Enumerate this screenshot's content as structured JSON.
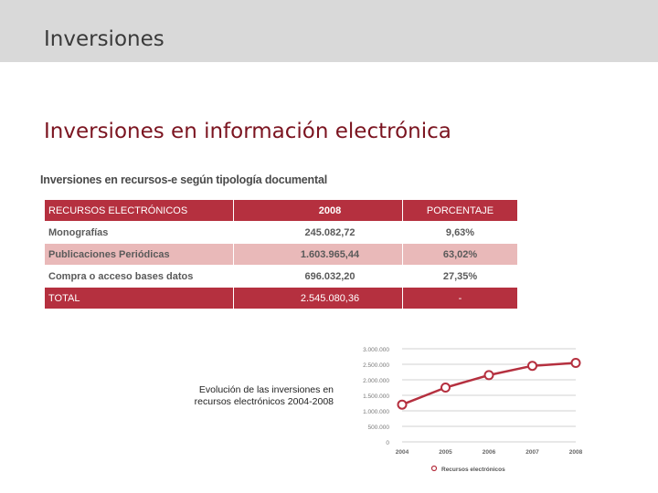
{
  "header": {
    "title": "Inversiones"
  },
  "main": {
    "title": "Inversiones en información electrónica",
    "subtitle": "Inversiones en recursos-e según tipología documental"
  },
  "table": {
    "headers": [
      "RECURSOS ELECTRÓNICOS",
      "2008",
      "PORCENTAJE"
    ],
    "rows": [
      [
        "Monografías",
        "245.082,72",
        "9,63%"
      ],
      [
        "Publicaciones Periódicas",
        "1.603.965,44",
        "63,02%"
      ],
      [
        "Compra o acceso bases datos",
        "696.032,20",
        "27,35%"
      ]
    ],
    "total": [
      "TOTAL",
      "2.545.080,36",
      "-"
    ]
  },
  "caption": {
    "line1": "Evolución de las inversiones en",
    "line2": "recursos electrónicos 2004-2008"
  },
  "colors": {
    "accent": "#b5303f",
    "alt_row": "#e9b9b9",
    "line": "#b5303f"
  },
  "chart_data": {
    "type": "line",
    "title": "",
    "xlabel": "",
    "ylabel": "",
    "categories": [
      "2004",
      "2005",
      "2006",
      "2007",
      "2008"
    ],
    "series": [
      {
        "name": "Recursos electrónicos",
        "values": [
          1200000,
          1750000,
          2150000,
          2450000,
          2545080.36
        ]
      }
    ],
    "ylim": [
      0,
      3000000
    ],
    "yticks": [
      0,
      500000,
      1000000,
      1500000,
      2000000,
      2500000,
      3000000
    ],
    "ytick_labels": [
      "0",
      "500.000",
      "1.000.000",
      "1.500.000",
      "2.000.000",
      "2.500.000",
      "3.000.000"
    ],
    "grid": true,
    "legend": "bottom"
  }
}
